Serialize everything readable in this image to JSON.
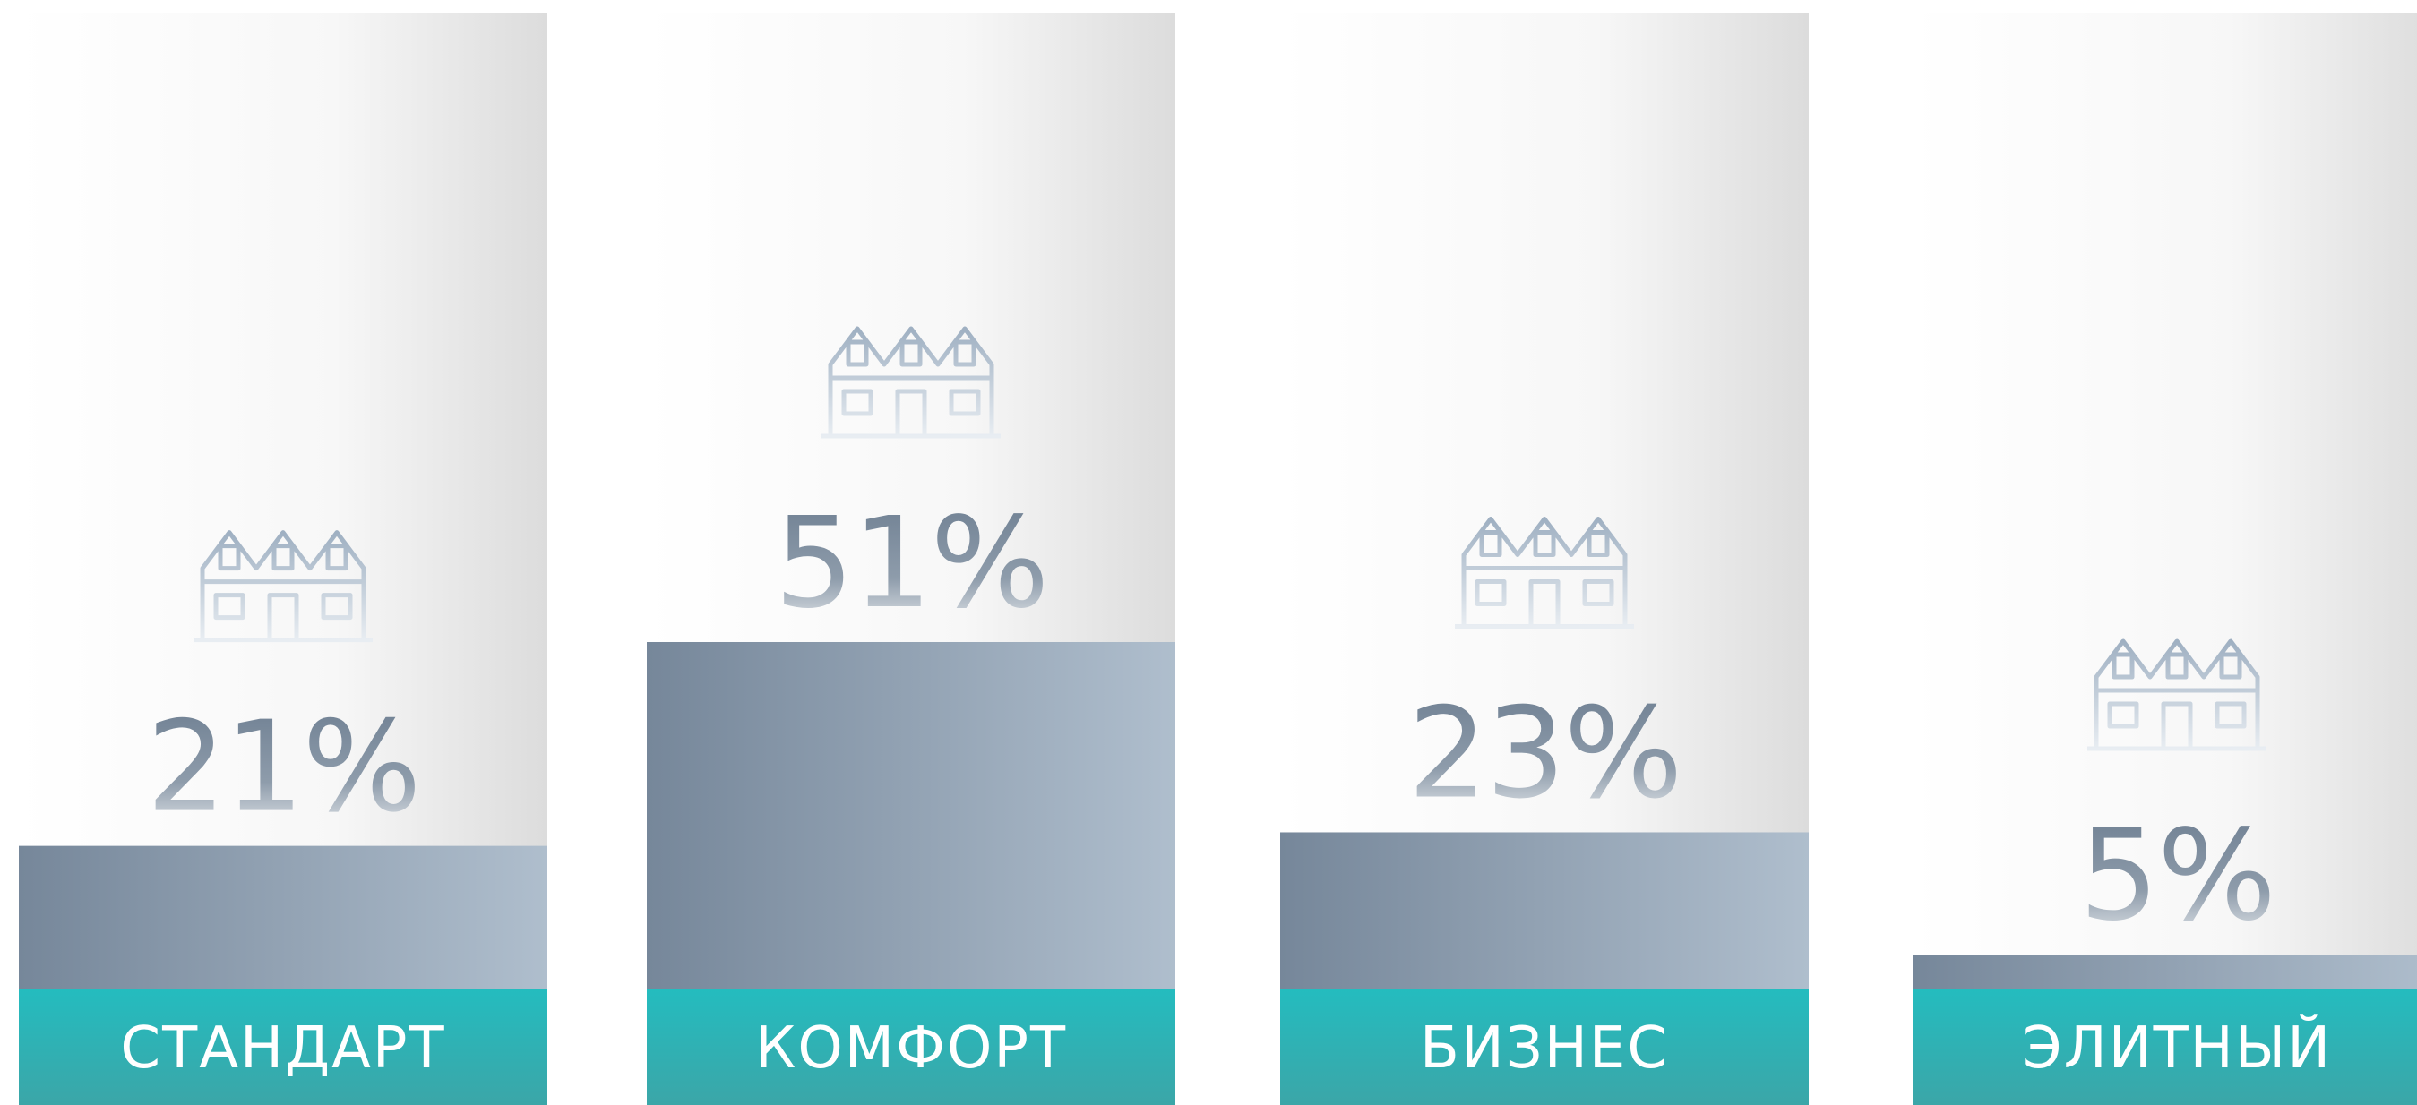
{
  "chart_data": {
    "type": "bar",
    "categories": [
      "СТАНДАРТ",
      "КОМФОРТ",
      "БИЗНЕС",
      "ЭЛИТНЫЙ"
    ],
    "values": [
      21,
      51,
      23,
      5
    ],
    "value_labels": [
      "21%",
      "51%",
      "23%",
      "5%"
    ],
    "color": "#8a9bad",
    "label_color": "#2ab8ba"
  }
}
